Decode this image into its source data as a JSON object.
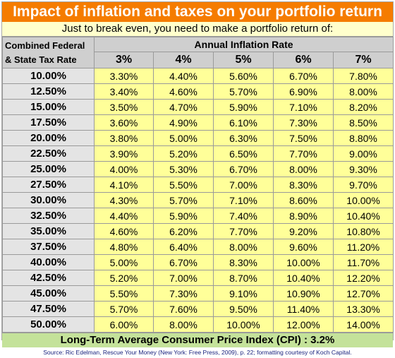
{
  "title": "Impact of inflation and taxes on your portfolio return",
  "subtitle": "Just to break even, you need to make a portfolio return of:",
  "table": {
    "row_header_line1": "Combined Federal",
    "row_header_line2": "& State Tax Rate",
    "column_group_header": "Annual Inflation Rate",
    "columns": [
      "3%",
      "4%",
      "5%",
      "6%",
      "7%"
    ],
    "rows": [
      {
        "label": "10.00%",
        "values": [
          "3.30%",
          "4.40%",
          "5.60%",
          "6.70%",
          "7.80%"
        ]
      },
      {
        "label": "12.50%",
        "values": [
          "3.40%",
          "4.60%",
          "5.70%",
          "6.90%",
          "8.00%"
        ]
      },
      {
        "label": "15.00%",
        "values": [
          "3.50%",
          "4.70%",
          "5.90%",
          "7.10%",
          "8.20%"
        ]
      },
      {
        "label": "17.50%",
        "values": [
          "3.60%",
          "4.90%",
          "6.10%",
          "7.30%",
          "8.50%"
        ]
      },
      {
        "label": "20.00%",
        "values": [
          "3.80%",
          "5.00%",
          "6.30%",
          "7.50%",
          "8.80%"
        ]
      },
      {
        "label": "22.50%",
        "values": [
          "3.90%",
          "5.20%",
          "6.50%",
          "7.70%",
          "9.00%"
        ]
      },
      {
        "label": "25.00%",
        "values": [
          "4.00%",
          "5.30%",
          "6.70%",
          "8.00%",
          "9.30%"
        ]
      },
      {
        "label": "27.50%",
        "values": [
          "4.10%",
          "5.50%",
          "7.00%",
          "8.30%",
          "9.70%"
        ]
      },
      {
        "label": "30.00%",
        "values": [
          "4.30%",
          "5.70%",
          "7.10%",
          "8.60%",
          "10.00%"
        ]
      },
      {
        "label": "32.50%",
        "values": [
          "4.40%",
          "5.90%",
          "7.40%",
          "8.90%",
          "10.40%"
        ]
      },
      {
        "label": "35.00%",
        "values": [
          "4.60%",
          "6.20%",
          "7.70%",
          "9.20%",
          "10.80%"
        ]
      },
      {
        "label": "37.50%",
        "values": [
          "4.80%",
          "6.40%",
          "8.00%",
          "9.60%",
          "11.20%"
        ]
      },
      {
        "label": "40.00%",
        "values": [
          "5.00%",
          "6.70%",
          "8.30%",
          "10.00%",
          "11.70%"
        ]
      },
      {
        "label": "42.50%",
        "values": [
          "5.20%",
          "7.00%",
          "8.70%",
          "10.40%",
          "12.20%"
        ]
      },
      {
        "label": "45.00%",
        "values": [
          "5.50%",
          "7.30%",
          "9.10%",
          "10.90%",
          "12.70%"
        ]
      },
      {
        "label": "47.50%",
        "values": [
          "5.70%",
          "7.60%",
          "9.50%",
          "11.40%",
          "13.30%"
        ]
      },
      {
        "label": "50.00%",
        "values": [
          "6.00%",
          "8.00%",
          "10.00%",
          "12.00%",
          "14.00%"
        ]
      }
    ]
  },
  "footer": "Long-Term Average Consumer Price Index (CPI) : 3.2%",
  "source": "Source: Ric Edelman, Rescue Your Money (New York: Free Press, 2009), p. 22; formatting courtesy of Koch Capital.",
  "colors": {
    "title_bg": "#f57c00",
    "subtitle_bg": "#ffffcc",
    "header_bg": "#cfcfcf",
    "row_label_bg": "#e4e4e4",
    "cell_bg": "#ffff99",
    "footer_bg": "#c4e29a",
    "source_text": "#1a237e"
  }
}
